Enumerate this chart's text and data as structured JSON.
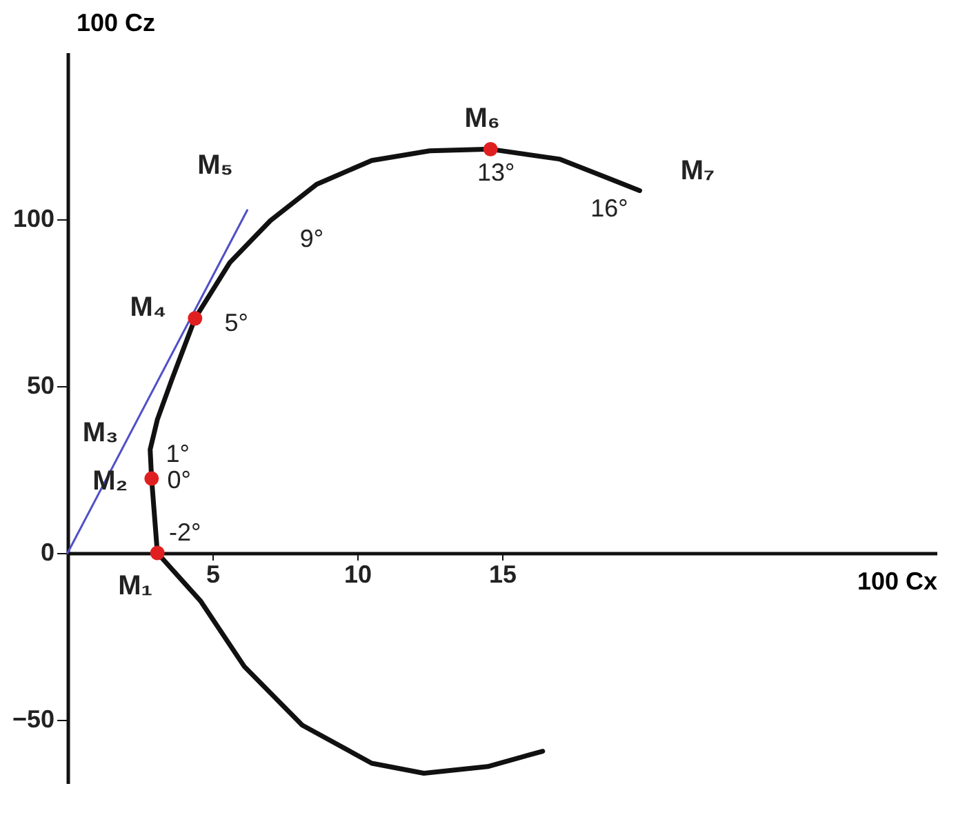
{
  "chart_data": {
    "type": "line",
    "xlabel": "100 Cx",
    "ylabel": "100 Cz",
    "xlim": [
      0,
      30
    ],
    "ylim": [
      -69,
      150
    ],
    "xticks": [
      5,
      10,
      15
    ],
    "yticks": [
      -50,
      0,
      50,
      100
    ],
    "grid": false,
    "series": [
      {
        "color": "#111111",
        "x": [
          16.4,
          14.5,
          12.3,
          10.5,
          8.1,
          6.1,
          4.6,
          3.1,
          2.9,
          2.85,
          3.1,
          3.6,
          4.4,
          5.6,
          7.0,
          8.6,
          10.5,
          12.5,
          14.6,
          17.0,
          19.75
        ],
        "values": [
          -59.4,
          -64,
          -66,
          -63,
          -51.6,
          -34,
          -14.5,
          0,
          22.3,
          31,
          40,
          52,
          70.3,
          87,
          99.6,
          110.5,
          117.6,
          120.5,
          121,
          118,
          108.6
        ]
      },
      {
        "type": "line",
        "color": "#5050c8",
        "x": [
          0,
          6.2
        ],
        "values": [
          0,
          102.7
        ]
      },
      {
        "type": "scatter",
        "color": "#e02020",
        "x": [
          3.1,
          2.9,
          4.4,
          14.6
        ],
        "values": [
          0,
          22.3,
          70.3,
          121
        ]
      }
    ],
    "annotations": [
      {
        "text": "M₁",
        "x": 3.1,
        "y": 0
      },
      {
        "text": "-2°",
        "x": 3.1,
        "y": 0
      },
      {
        "text": "M₂",
        "x": 2.9,
        "y": 22.3
      },
      {
        "text": "0°",
        "x": 2.9,
        "y": 22.3
      },
      {
        "text": "M₃",
        "x": 2.85,
        "y": 31
      },
      {
        "text": "1°",
        "x": 2.85,
        "y": 31
      },
      {
        "text": "M₄",
        "x": 4.4,
        "y": 70.3
      },
      {
        "text": "5°",
        "x": 4.4,
        "y": 70.3
      },
      {
        "text": "M₅",
        "x": 7.0,
        "y": 99.6
      },
      {
        "text": "9°",
        "x": 7.0,
        "y": 99.6
      },
      {
        "text": "M₆",
        "x": 14.6,
        "y": 121
      },
      {
        "text": "13°",
        "x": 14.6,
        "y": 121
      },
      {
        "text": "M₇",
        "x": 19.75,
        "y": 108.6
      },
      {
        "text": "16°",
        "x": 19.75,
        "y": 108.6
      }
    ]
  }
}
